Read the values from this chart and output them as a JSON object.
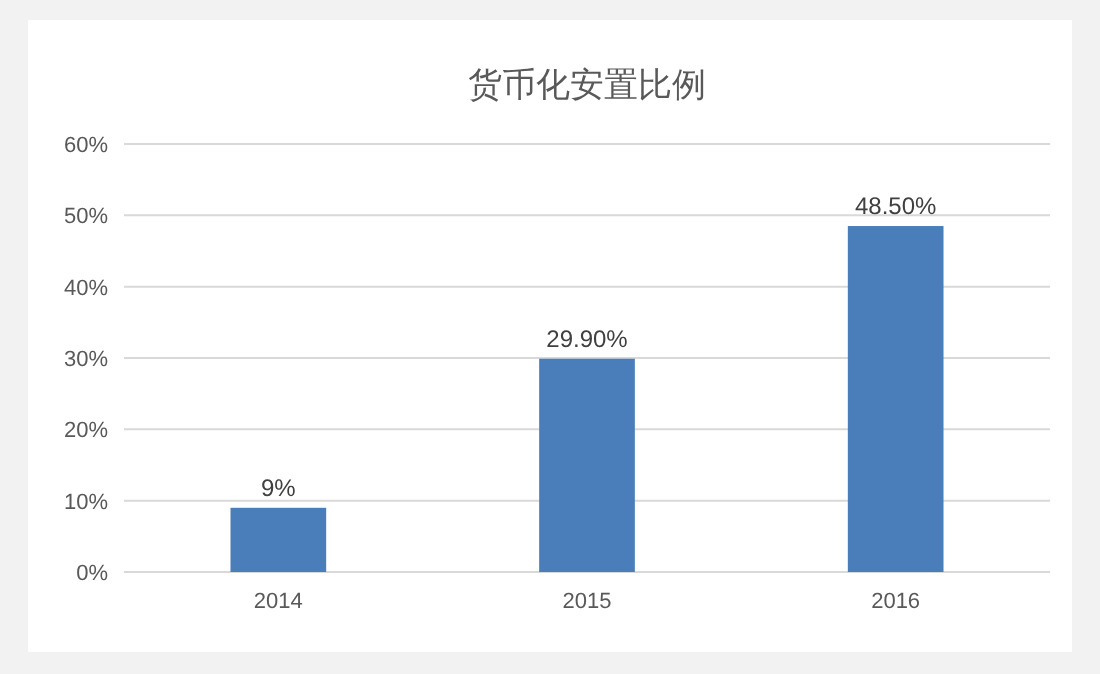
{
  "chart_data": {
    "type": "bar",
    "title": "货币化安置比例",
    "categories": [
      "2014",
      "2015",
      "2016"
    ],
    "values": [
      9,
      29.9,
      48.5
    ],
    "value_labels": [
      "9%",
      "29.90%",
      "48.50%"
    ],
    "color": "#4a7ebb",
    "ylim": [
      0,
      60
    ],
    "yticks": [
      {
        "value": 0,
        "label": "0%"
      },
      {
        "value": 10,
        "label": "10%"
      },
      {
        "value": 20,
        "label": "20%"
      },
      {
        "value": 30,
        "label": "30%"
      },
      {
        "value": 40,
        "label": "40%"
      },
      {
        "value": 50,
        "label": "50%"
      },
      {
        "value": 60,
        "label": "60%"
      }
    ],
    "grid": "y"
  }
}
